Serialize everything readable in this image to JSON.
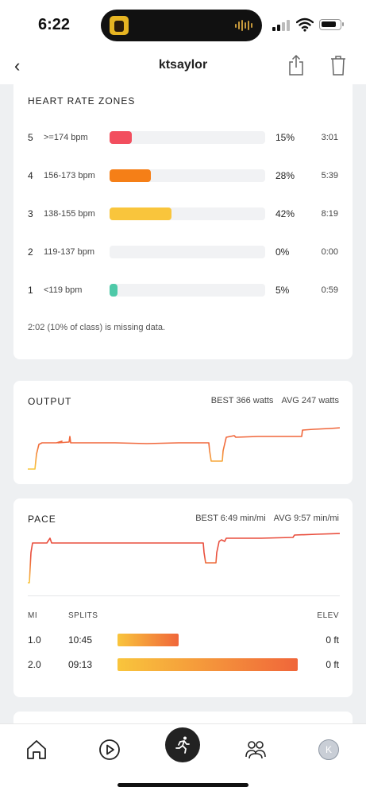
{
  "status_bar": {
    "time": "6:22"
  },
  "nav": {
    "back_glyph": "‹",
    "title": "ktsaylor",
    "share_icon": "share-icon",
    "trash_icon": "trash-icon"
  },
  "heart_rate_zones": {
    "title": "HEART RATE ZONES",
    "zones": [
      {
        "zone": "5",
        "range": ">=174 bpm",
        "percent_label": "15%",
        "fraction": 0.15,
        "time": "3:01",
        "color": "#f24e5e"
      },
      {
        "zone": "4",
        "range": "156-173 bpm",
        "percent_label": "28%",
        "fraction": 0.28,
        "time": "5:39",
        "color": "#f57f17"
      },
      {
        "zone": "3",
        "range": "138-155 bpm",
        "percent_label": "42%",
        "fraction": 0.42,
        "time": "8:19",
        "color": "#f9c53c"
      },
      {
        "zone": "2",
        "range": "119-137 bpm",
        "percent_label": "0%",
        "fraction": 0.0,
        "time": "0:00",
        "color": "#a8d35a"
      },
      {
        "zone": "1",
        "range": "<119 bpm",
        "percent_label": "5%",
        "fraction": 0.05,
        "time": "0:59",
        "color": "#4ec9a8"
      }
    ],
    "missing_note": "2:02 (10% of class) is missing data."
  },
  "output": {
    "title": "OUTPUT",
    "best": "BEST 366 watts",
    "avg": "AVG 247 watts",
    "line_colors": [
      "#f9c53c",
      "#f0663a"
    ]
  },
  "pace": {
    "title": "PACE",
    "best": "BEST 6:49 min/mi",
    "avg": "AVG 9:57 min/mi",
    "line_colors": [
      "#f9c53c",
      "#e94e3d"
    ],
    "splits_header": {
      "mi": "MI",
      "splits": "SPLITS",
      "elev": "ELEV"
    },
    "splits": [
      {
        "mi": "1.0",
        "time": "10:45",
        "elev": "0 ft",
        "fraction": 0.34
      },
      {
        "mi": "2.0",
        "time": "09:13",
        "elev": "0 ft",
        "fraction": 1.0
      }
    ],
    "bar_colors": [
      "#f9c53c",
      "#f0663a"
    ]
  },
  "tab_bar": {
    "items": [
      "home-icon",
      "play-icon",
      "run-icon",
      "community-icon",
      "profile-avatar"
    ],
    "avatar_initial": "K"
  }
}
